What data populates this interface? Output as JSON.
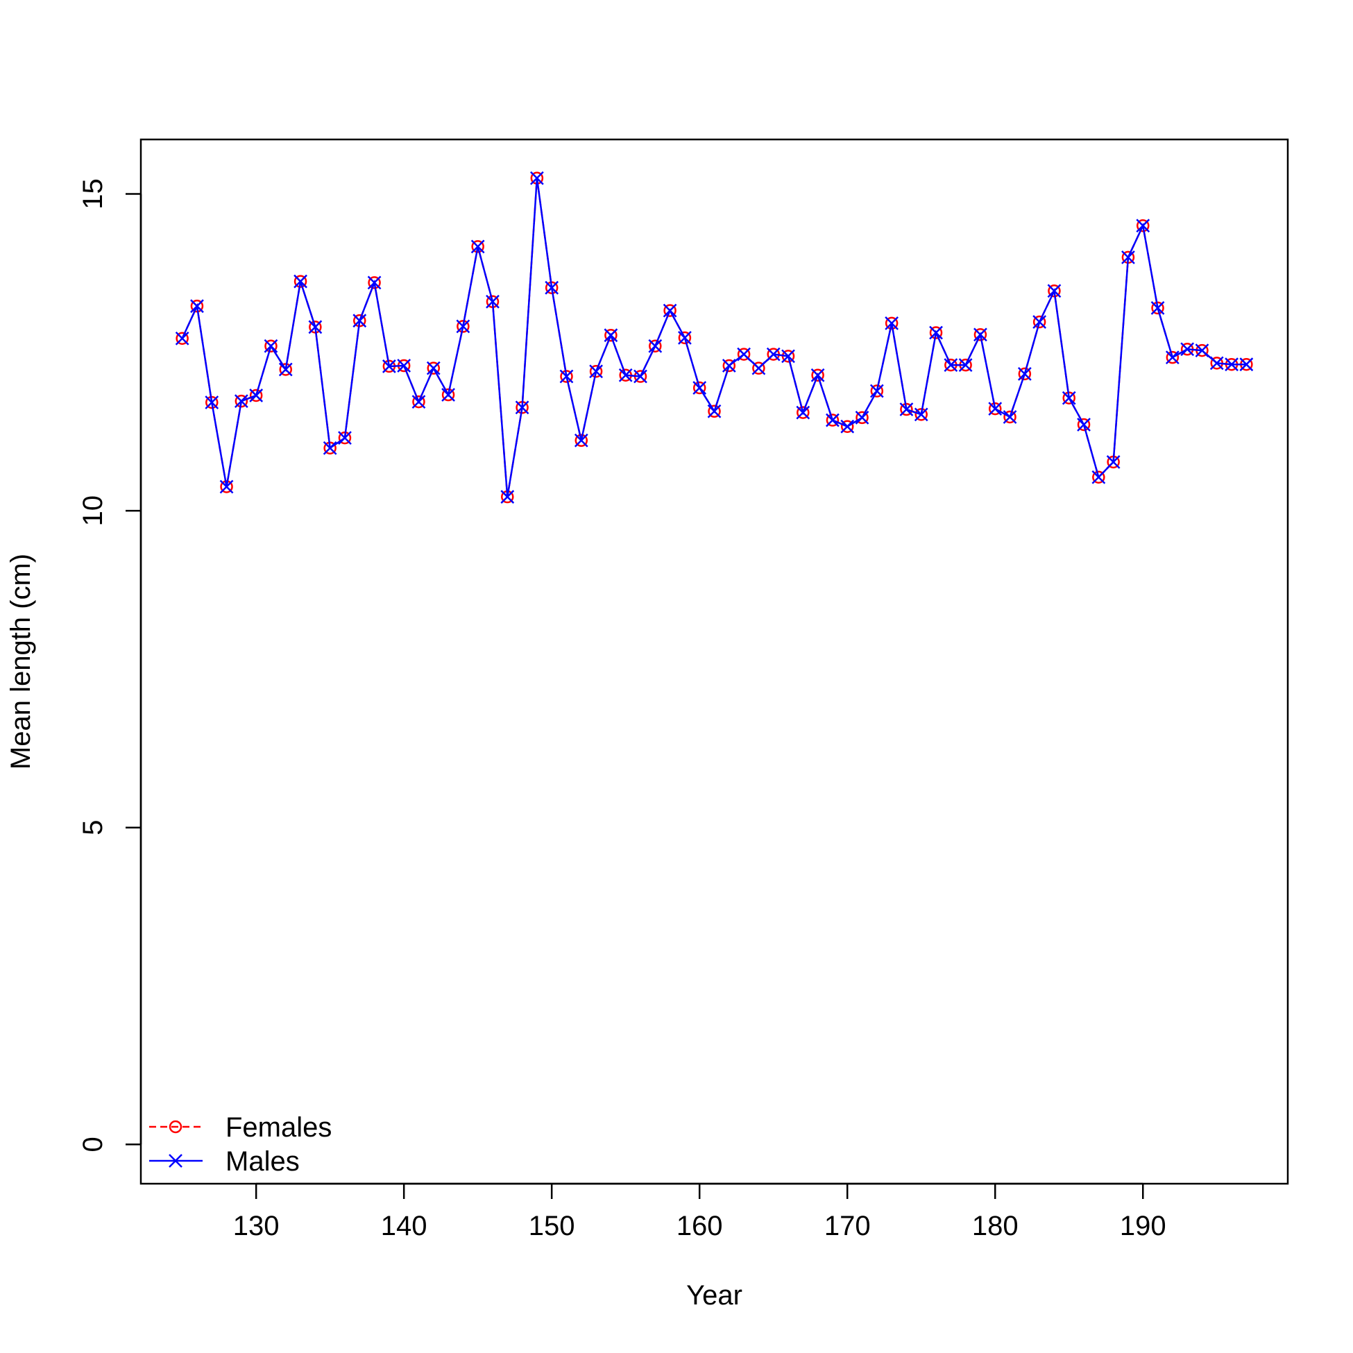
{
  "chart_data": {
    "type": "line",
    "title": "",
    "xlabel": "Year",
    "ylabel": "Mean length (cm)",
    "xlim": [
      122.2,
      199.8
    ],
    "ylim": [
      -0.62,
      15.86
    ],
    "x_ticks": [
      130,
      140,
      150,
      160,
      170,
      180,
      190
    ],
    "y_ticks": [
      0,
      5,
      10,
      15
    ],
    "grid": false,
    "legend_position": "bottom-left",
    "x": [
      125,
      126,
      127,
      128,
      129,
      130,
      131,
      132,
      133,
      134,
      135,
      136,
      137,
      138,
      139,
      140,
      141,
      142,
      143,
      144,
      145,
      146,
      147,
      148,
      149,
      150,
      151,
      152,
      153,
      154,
      155,
      156,
      157,
      158,
      159,
      160,
      161,
      162,
      163,
      164,
      165,
      166,
      167,
      168,
      169,
      170,
      171,
      172,
      173,
      174,
      175,
      176,
      177,
      178,
      179,
      180,
      181,
      182,
      183,
      184,
      185,
      186,
      187,
      188,
      189,
      190,
      191,
      192,
      193,
      194,
      195,
      196,
      197
    ],
    "series": [
      {
        "name": "Females",
        "color": "#ff0000",
        "line_style": "dashed",
        "marker": "circle",
        "values": [
          12.72,
          13.23,
          11.71,
          10.38,
          11.73,
          11.82,
          12.6,
          12.23,
          13.62,
          12.9,
          10.99,
          11.15,
          13.0,
          13.6,
          12.28,
          12.29,
          11.72,
          12.25,
          11.83,
          12.91,
          14.17,
          13.3,
          10.22,
          11.63,
          15.25,
          13.52,
          12.12,
          11.11,
          12.2,
          12.77,
          12.14,
          12.12,
          12.6,
          13.16,
          12.73,
          11.94,
          11.57,
          12.29,
          12.47,
          12.25,
          12.47,
          12.44,
          11.55,
          12.14,
          11.43,
          11.33,
          11.47,
          11.89,
          12.96,
          11.6,
          11.52,
          12.81,
          12.3,
          12.3,
          12.78,
          11.61,
          11.48,
          12.16,
          12.98,
          13.47,
          11.78,
          11.36,
          10.53,
          10.77,
          14.0,
          14.5,
          13.2,
          12.42,
          12.55,
          12.53,
          12.33,
          12.31,
          12.31
        ]
      },
      {
        "name": "Males",
        "color": "#0000ff",
        "line_style": "solid",
        "marker": "x",
        "values": [
          12.72,
          13.23,
          11.71,
          10.38,
          11.73,
          11.82,
          12.6,
          12.23,
          13.62,
          12.9,
          10.99,
          11.15,
          13.0,
          13.6,
          12.28,
          12.29,
          11.72,
          12.25,
          11.83,
          12.91,
          14.17,
          13.3,
          10.22,
          11.63,
          15.25,
          13.52,
          12.12,
          11.11,
          12.2,
          12.77,
          12.14,
          12.12,
          12.6,
          13.16,
          12.73,
          11.94,
          11.57,
          12.29,
          12.47,
          12.25,
          12.47,
          12.44,
          11.55,
          12.14,
          11.43,
          11.33,
          11.47,
          11.89,
          12.96,
          11.6,
          11.52,
          12.81,
          12.3,
          12.3,
          12.78,
          11.61,
          11.48,
          12.16,
          12.98,
          13.47,
          11.78,
          11.36,
          10.53,
          10.77,
          14.0,
          14.5,
          13.2,
          12.42,
          12.55,
          12.53,
          12.33,
          12.31,
          12.31
        ]
      }
    ]
  }
}
